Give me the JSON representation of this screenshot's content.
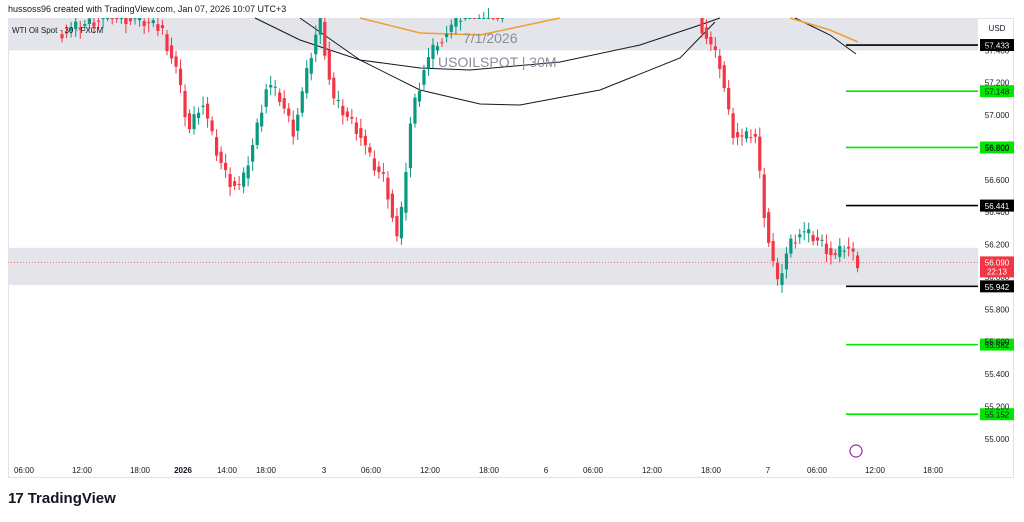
{
  "header": {
    "attribution": "hussoss96 created with TradingView.com, Jan 07, 2026 10:07 UTC+3"
  },
  "symbol": {
    "label": "WTI Oil Spot · 30 · FXCM"
  },
  "watermark": {
    "date": "7/1/2026",
    "ticker": "USOILSPOT | 30M"
  },
  "footer": {
    "brand": "TradingView"
  },
  "price_axis": {
    "currency": "USD",
    "ticks": [
      "57.400",
      "57.200",
      "57.000",
      "56.800",
      "56.600",
      "56.400",
      "56.200",
      "56.000",
      "55.800",
      "55.600",
      "55.400",
      "55.200",
      "55.000"
    ]
  },
  "time_axis": {
    "ticks": [
      "06:00",
      "12:00",
      "18:00",
      "2026",
      "14:00",
      "18:00",
      "3",
      "06:00",
      "12:00",
      "18:00",
      "6",
      "06:00",
      "12:00",
      "18:00",
      "7",
      "06:00",
      "12:00",
      "18:00"
    ]
  },
  "colors": {
    "up": "#089981",
    "down": "#f23645",
    "green_level": "#00e600",
    "black_level": "#000000",
    "zone": "#e4e5ea",
    "sma_orange": "#f0a030",
    "envelope": "#131722"
  },
  "chart_data": {
    "type": "candlestick",
    "title": "WTI Oil Spot · 30 · FXCM",
    "ylim": [
      54.9,
      57.6
    ],
    "current_price": {
      "value": 56.09,
      "label": "56.090",
      "countdown": "22:13"
    },
    "levels": [
      {
        "value": 57.433,
        "label": "57.433",
        "kind": "black"
      },
      {
        "value": 57.148,
        "label": "57.148",
        "kind": "green"
      },
      {
        "value": 56.8,
        "label": "56.800",
        "kind": "green"
      },
      {
        "value": 56.441,
        "label": "56.441",
        "kind": "black"
      },
      {
        "value": 55.942,
        "label": "55.942",
        "kind": "black"
      },
      {
        "value": 55.582,
        "label": "55.582",
        "kind": "green"
      },
      {
        "value": 55.152,
        "label": "55.152",
        "kind": "green"
      }
    ],
    "zones": [
      {
        "from": 57.4,
        "to": 57.6
      },
      {
        "from": 55.95,
        "to": 56.18
      }
    ],
    "segments": [
      {
        "x0": 60,
        "x1": 165,
        "points": [
          57.5,
          57.62,
          57.55
        ]
      },
      {
        "x0": 165,
        "x1": 440,
        "points": [
          57.5,
          57.3,
          56.9,
          57.1,
          56.8,
          56.6,
          56.55,
          56.85,
          57.2,
          57.1,
          56.9,
          57.25,
          57.6,
          57.1,
          57.0,
          56.9,
          56.7,
          56.6,
          56.2,
          57.0,
          57.3,
          57.45
        ]
      },
      {
        "x0": 440,
        "x1": 505,
        "points": [
          57.45,
          57.6,
          57.7,
          57.6
        ]
      },
      {
        "x0": 700,
        "x1": 860,
        "points": [
          57.6,
          57.45,
          57.3,
          56.9,
          56.85,
          56.9,
          56.3,
          55.95,
          56.2,
          56.28,
          56.25,
          56.2,
          56.12,
          56.2,
          56.09
        ]
      }
    ]
  }
}
